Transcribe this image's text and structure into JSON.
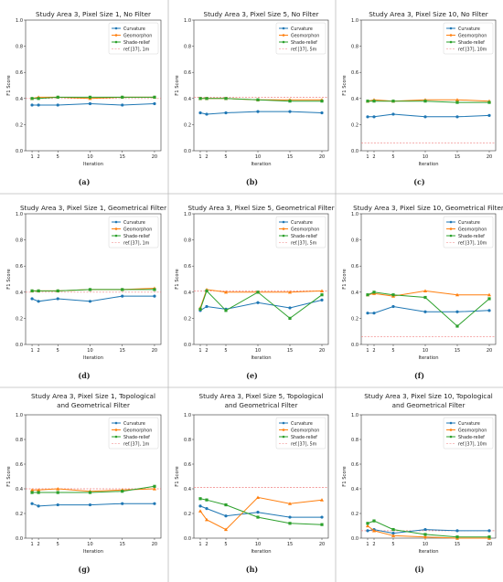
{
  "colors": {
    "curvature": "#1f77b4",
    "geomorphon": "#ff7f0e",
    "shade_relief": "#2ca02c",
    "ref": "#ef7f7f",
    "frame": "#999999"
  },
  "chart_data": [
    {
      "type": "line",
      "panel": "(a)",
      "title": "Study Area 3, Pixel Size 1, No Filter",
      "xlabel": "Iteration",
      "ylabel": "F1 Score",
      "x": [
        1,
        2,
        5,
        10,
        15,
        20
      ],
      "xticks": [
        "1",
        "2",
        "5",
        "10",
        "15",
        "20"
      ],
      "ylim": [
        0.0,
        1.0
      ],
      "yticks": [
        "0.0",
        "0.2",
        "0.4",
        "0.6",
        "0.8",
        "1.0"
      ],
      "legend": "top-right",
      "grid": false,
      "series": [
        {
          "name": "Curvature",
          "values": [
            0.35,
            0.35,
            0.35,
            0.36,
            0.35,
            0.36
          ]
        },
        {
          "name": "Geomorphon",
          "values": [
            0.4,
            0.41,
            0.41,
            0.4,
            0.41,
            0.41
          ]
        },
        {
          "name": "Shade-relief",
          "values": [
            0.4,
            0.4,
            0.41,
            0.41,
            0.41,
            0.41
          ]
        }
      ],
      "ref": {
        "name": "ref.[37], 1m",
        "value": 0.4
      }
    },
    {
      "type": "line",
      "panel": "(b)",
      "title": "Study Area 3, Pixel Size 5, No Filter",
      "xlabel": "Iteration",
      "ylabel": "F1 Score",
      "x": [
        1,
        2,
        5,
        10,
        15,
        20
      ],
      "xticks": [
        "1",
        "2",
        "5",
        "10",
        "15",
        "20"
      ],
      "ylim": [
        0.0,
        1.0
      ],
      "yticks": [
        "0.0",
        "0.2",
        "0.4",
        "0.6",
        "0.8",
        "1.0"
      ],
      "legend": "top-right",
      "grid": false,
      "series": [
        {
          "name": "Curvature",
          "values": [
            0.29,
            0.28,
            0.29,
            0.3,
            0.3,
            0.29
          ]
        },
        {
          "name": "Geomorphon",
          "values": [
            0.4,
            0.4,
            0.4,
            0.39,
            0.39,
            0.39
          ]
        },
        {
          "name": "Shade-relief",
          "values": [
            0.4,
            0.4,
            0.4,
            0.39,
            0.38,
            0.38
          ]
        }
      ],
      "ref": {
        "name": "ref.[37], 5m",
        "value": 0.41
      }
    },
    {
      "type": "line",
      "panel": "(c)",
      "title": "Study Area 3, Pixel Size 10, No Filter",
      "xlabel": "Iteration",
      "ylabel": "F1 Score",
      "x": [
        1,
        2,
        5,
        10,
        15,
        20
      ],
      "xticks": [
        "1",
        "2",
        "5",
        "10",
        "15",
        "20"
      ],
      "ylim": [
        0.0,
        1.0
      ],
      "yticks": [
        "0.0",
        "0.2",
        "0.4",
        "0.6",
        "0.8",
        "1.0"
      ],
      "legend": "top-right",
      "grid": false,
      "series": [
        {
          "name": "Curvature",
          "values": [
            0.26,
            0.26,
            0.28,
            0.26,
            0.26,
            0.27
          ]
        },
        {
          "name": "Geomorphon",
          "values": [
            0.38,
            0.39,
            0.38,
            0.39,
            0.39,
            0.38
          ]
        },
        {
          "name": "Shade-relief",
          "values": [
            0.38,
            0.38,
            0.38,
            0.38,
            0.37,
            0.37
          ]
        }
      ],
      "ref": {
        "name": "ref.[37], 10m",
        "value": 0.06
      }
    },
    {
      "type": "line",
      "panel": "(d)",
      "title": "Study Area 3, Pixel Size 1, Geometrical Filter",
      "xlabel": "Iteration",
      "ylabel": "F1 Score",
      "x": [
        1,
        2,
        5,
        10,
        15,
        20
      ],
      "xticks": [
        "1",
        "2",
        "5",
        "10",
        "15",
        "20"
      ],
      "ylim": [
        0.0,
        1.0
      ],
      "yticks": [
        "0.0",
        "0.2",
        "0.4",
        "0.6",
        "0.8",
        "1.0"
      ],
      "legend": "top-right",
      "grid": false,
      "series": [
        {
          "name": "Curvature",
          "values": [
            0.35,
            0.33,
            0.35,
            0.33,
            0.37,
            0.37
          ]
        },
        {
          "name": "Geomorphon",
          "values": [
            0.41,
            0.41,
            0.41,
            0.42,
            0.42,
            0.43
          ]
        },
        {
          "name": "Shade-relief",
          "values": [
            0.41,
            0.41,
            0.41,
            0.42,
            0.42,
            0.42
          ]
        }
      ],
      "ref": {
        "name": "ref.[37], 1m",
        "value": 0.4
      }
    },
    {
      "type": "line",
      "panel": "(e)",
      "title": "Study Area 3, Pixel Size 5, Geometrical Filter",
      "xlabel": "Iteration",
      "ylabel": "F1 Score",
      "x": [
        1,
        2,
        5,
        10,
        15,
        20
      ],
      "xticks": [
        "1",
        "2",
        "5",
        "10",
        "15",
        "20"
      ],
      "ylim": [
        0.0,
        1.0
      ],
      "yticks": [
        "0.0",
        "0.2",
        "0.4",
        "0.6",
        "0.8",
        "1.0"
      ],
      "legend": "top-right",
      "grid": false,
      "series": [
        {
          "name": "Curvature",
          "values": [
            0.26,
            0.29,
            0.27,
            0.32,
            0.28,
            0.34
          ]
        },
        {
          "name": "Geomorphon",
          "values": [
            0.28,
            0.42,
            0.4,
            0.4,
            0.4,
            0.41
          ]
        },
        {
          "name": "Shade-relief",
          "values": [
            0.27,
            0.41,
            0.26,
            0.4,
            0.2,
            0.38
          ]
        }
      ],
      "ref": {
        "name": "ref.[37], 5m",
        "value": 0.41
      }
    },
    {
      "type": "line",
      "panel": "(f)",
      "title": "Study Area 3, Pixel Size 10, Geometrical Filter",
      "xlabel": "Iteration",
      "ylabel": "F1 Score",
      "x": [
        1,
        2,
        5,
        10,
        15,
        20
      ],
      "xticks": [
        "1",
        "2",
        "5",
        "10",
        "15",
        "20"
      ],
      "ylim": [
        0.0,
        1.0
      ],
      "yticks": [
        "0.0",
        "0.2",
        "0.4",
        "0.6",
        "0.8",
        "1.0"
      ],
      "legend": "top-right",
      "grid": false,
      "series": [
        {
          "name": "Curvature",
          "values": [
            0.24,
            0.24,
            0.29,
            0.25,
            0.25,
            0.26
          ]
        },
        {
          "name": "Geomorphon",
          "values": [
            0.38,
            0.39,
            0.37,
            0.41,
            0.38,
            0.38
          ]
        },
        {
          "name": "Shade-relief",
          "values": [
            0.38,
            0.4,
            0.38,
            0.36,
            0.14,
            0.35
          ]
        }
      ],
      "ref": {
        "name": "ref.[37], 10m",
        "value": 0.06
      }
    },
    {
      "type": "line",
      "panel": "(g)",
      "title": "Study Area 3, Pixel Size 1, Topological\nand Geometrical Filter",
      "xlabel": "Iteration",
      "ylabel": "F1 Score",
      "x": [
        1,
        2,
        5,
        10,
        15,
        20
      ],
      "xticks": [
        "1",
        "2",
        "5",
        "10",
        "15",
        "20"
      ],
      "ylim": [
        0.0,
        1.0
      ],
      "yticks": [
        "0.0",
        "0.2",
        "0.4",
        "0.6",
        "0.8",
        "1.0"
      ],
      "legend": "top-right",
      "grid": false,
      "series": [
        {
          "name": "Curvature",
          "values": [
            0.28,
            0.26,
            0.27,
            0.27,
            0.28,
            0.28
          ]
        },
        {
          "name": "Geomorphon",
          "values": [
            0.39,
            0.39,
            0.4,
            0.38,
            0.39,
            0.4
          ]
        },
        {
          "name": "Shade-relief",
          "values": [
            0.37,
            0.37,
            0.37,
            0.37,
            0.38,
            0.42
          ]
        }
      ],
      "ref": {
        "name": "ref.[37], 1m",
        "value": 0.4
      }
    },
    {
      "type": "line",
      "panel": "(h)",
      "title": "Study Area 3, Pixel Size 5, Topological\nand Geometrical Filter",
      "xlabel": "Iteration",
      "ylabel": "F1 Score",
      "x": [
        1,
        2,
        5,
        10,
        15,
        20
      ],
      "xticks": [
        "1",
        "2",
        "5",
        "10",
        "15",
        "20"
      ],
      "ylim": [
        0.0,
        1.0
      ],
      "yticks": [
        "0.0",
        "0.2",
        "0.4",
        "0.6",
        "0.8",
        "1.0"
      ],
      "legend": "top-right",
      "grid": false,
      "series": [
        {
          "name": "Curvature",
          "values": [
            0.26,
            0.24,
            0.18,
            0.21,
            0.17,
            0.17
          ]
        },
        {
          "name": "Geomorphon",
          "values": [
            0.22,
            0.15,
            0.07,
            0.33,
            0.28,
            0.31
          ]
        },
        {
          "name": "Shade-relief",
          "values": [
            0.32,
            0.31,
            0.27,
            0.17,
            0.12,
            0.11
          ]
        }
      ],
      "ref": {
        "name": "ref.[37], 5m",
        "value": 0.41
      }
    },
    {
      "type": "line",
      "panel": "(i)",
      "title": "Study Area 3, Pixel Size 10, Topological\nand Geometrical Filter",
      "xlabel": "Iteration",
      "ylabel": "F1 Score",
      "x": [
        1,
        2,
        5,
        10,
        15,
        20
      ],
      "xticks": [
        "1",
        "2",
        "5",
        "10",
        "15",
        "20"
      ],
      "ylim": [
        0.0,
        1.0
      ],
      "yticks": [
        "0.0",
        "0.2",
        "0.4",
        "0.6",
        "0.8",
        "1.0"
      ],
      "legend": "top-right",
      "grid": false,
      "series": [
        {
          "name": "Curvature",
          "values": [
            0.06,
            0.07,
            0.04,
            0.07,
            0.06,
            0.06
          ]
        },
        {
          "name": "Geomorphon",
          "values": [
            0.1,
            0.06,
            0.02,
            0.01,
            0.0,
            0.0
          ]
        },
        {
          "name": "Shade-relief",
          "values": [
            0.12,
            0.14,
            0.07,
            0.03,
            0.01,
            0.01
          ]
        }
      ],
      "ref": {
        "name": "ref.[37], 10m",
        "value": 0.06
      }
    }
  ]
}
